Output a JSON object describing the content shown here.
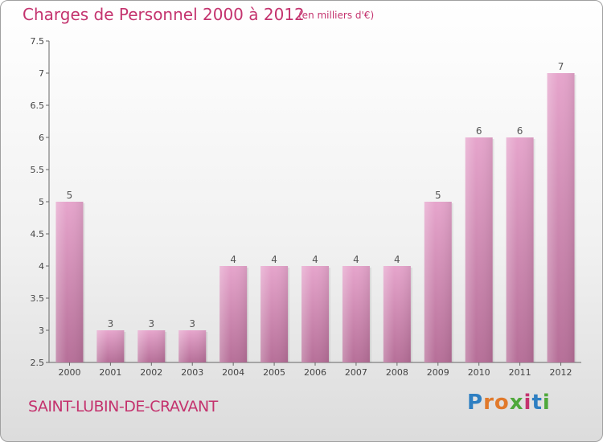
{
  "header": {
    "title": "Charges de Personnel 2000 à 2012",
    "subtitle": "(en milliers d'€)"
  },
  "footer": {
    "place": "SAINT-LUBIN-DE-CRAVANT",
    "logo": "Proxiti"
  },
  "colors": {
    "title": "#c4336e",
    "bar_top": "#e6a5cc",
    "bar_bottom": "#b66f98"
  },
  "chart_data": {
    "type": "bar",
    "title": "Charges de Personnel 2000 à 2012",
    "subtitle": "(en milliers d'€)",
    "categories": [
      "2000",
      "2001",
      "2002",
      "2003",
      "2004",
      "2005",
      "2006",
      "2007",
      "2008",
      "2009",
      "2010",
      "2011",
      "2012"
    ],
    "values": [
      5,
      3,
      3,
      3,
      4,
      4,
      4,
      4,
      4,
      5,
      6,
      6,
      7
    ],
    "data_labels": [
      "5",
      "3",
      "3",
      "3",
      "4",
      "4",
      "4",
      "4",
      "4",
      "5",
      "6",
      "6",
      "7"
    ],
    "ylim": [
      2.5,
      7.5
    ],
    "yticks": [
      2.5,
      3,
      3.5,
      4,
      4.5,
      5,
      5.5,
      6,
      6.5,
      7,
      7.5
    ],
    "ytick_labels": [
      "2.5",
      "3",
      "3.5",
      "4",
      "4.5",
      "5",
      "5.5",
      "6",
      "6.5",
      "7",
      "7.5"
    ],
    "grid": false,
    "legend": "none"
  }
}
